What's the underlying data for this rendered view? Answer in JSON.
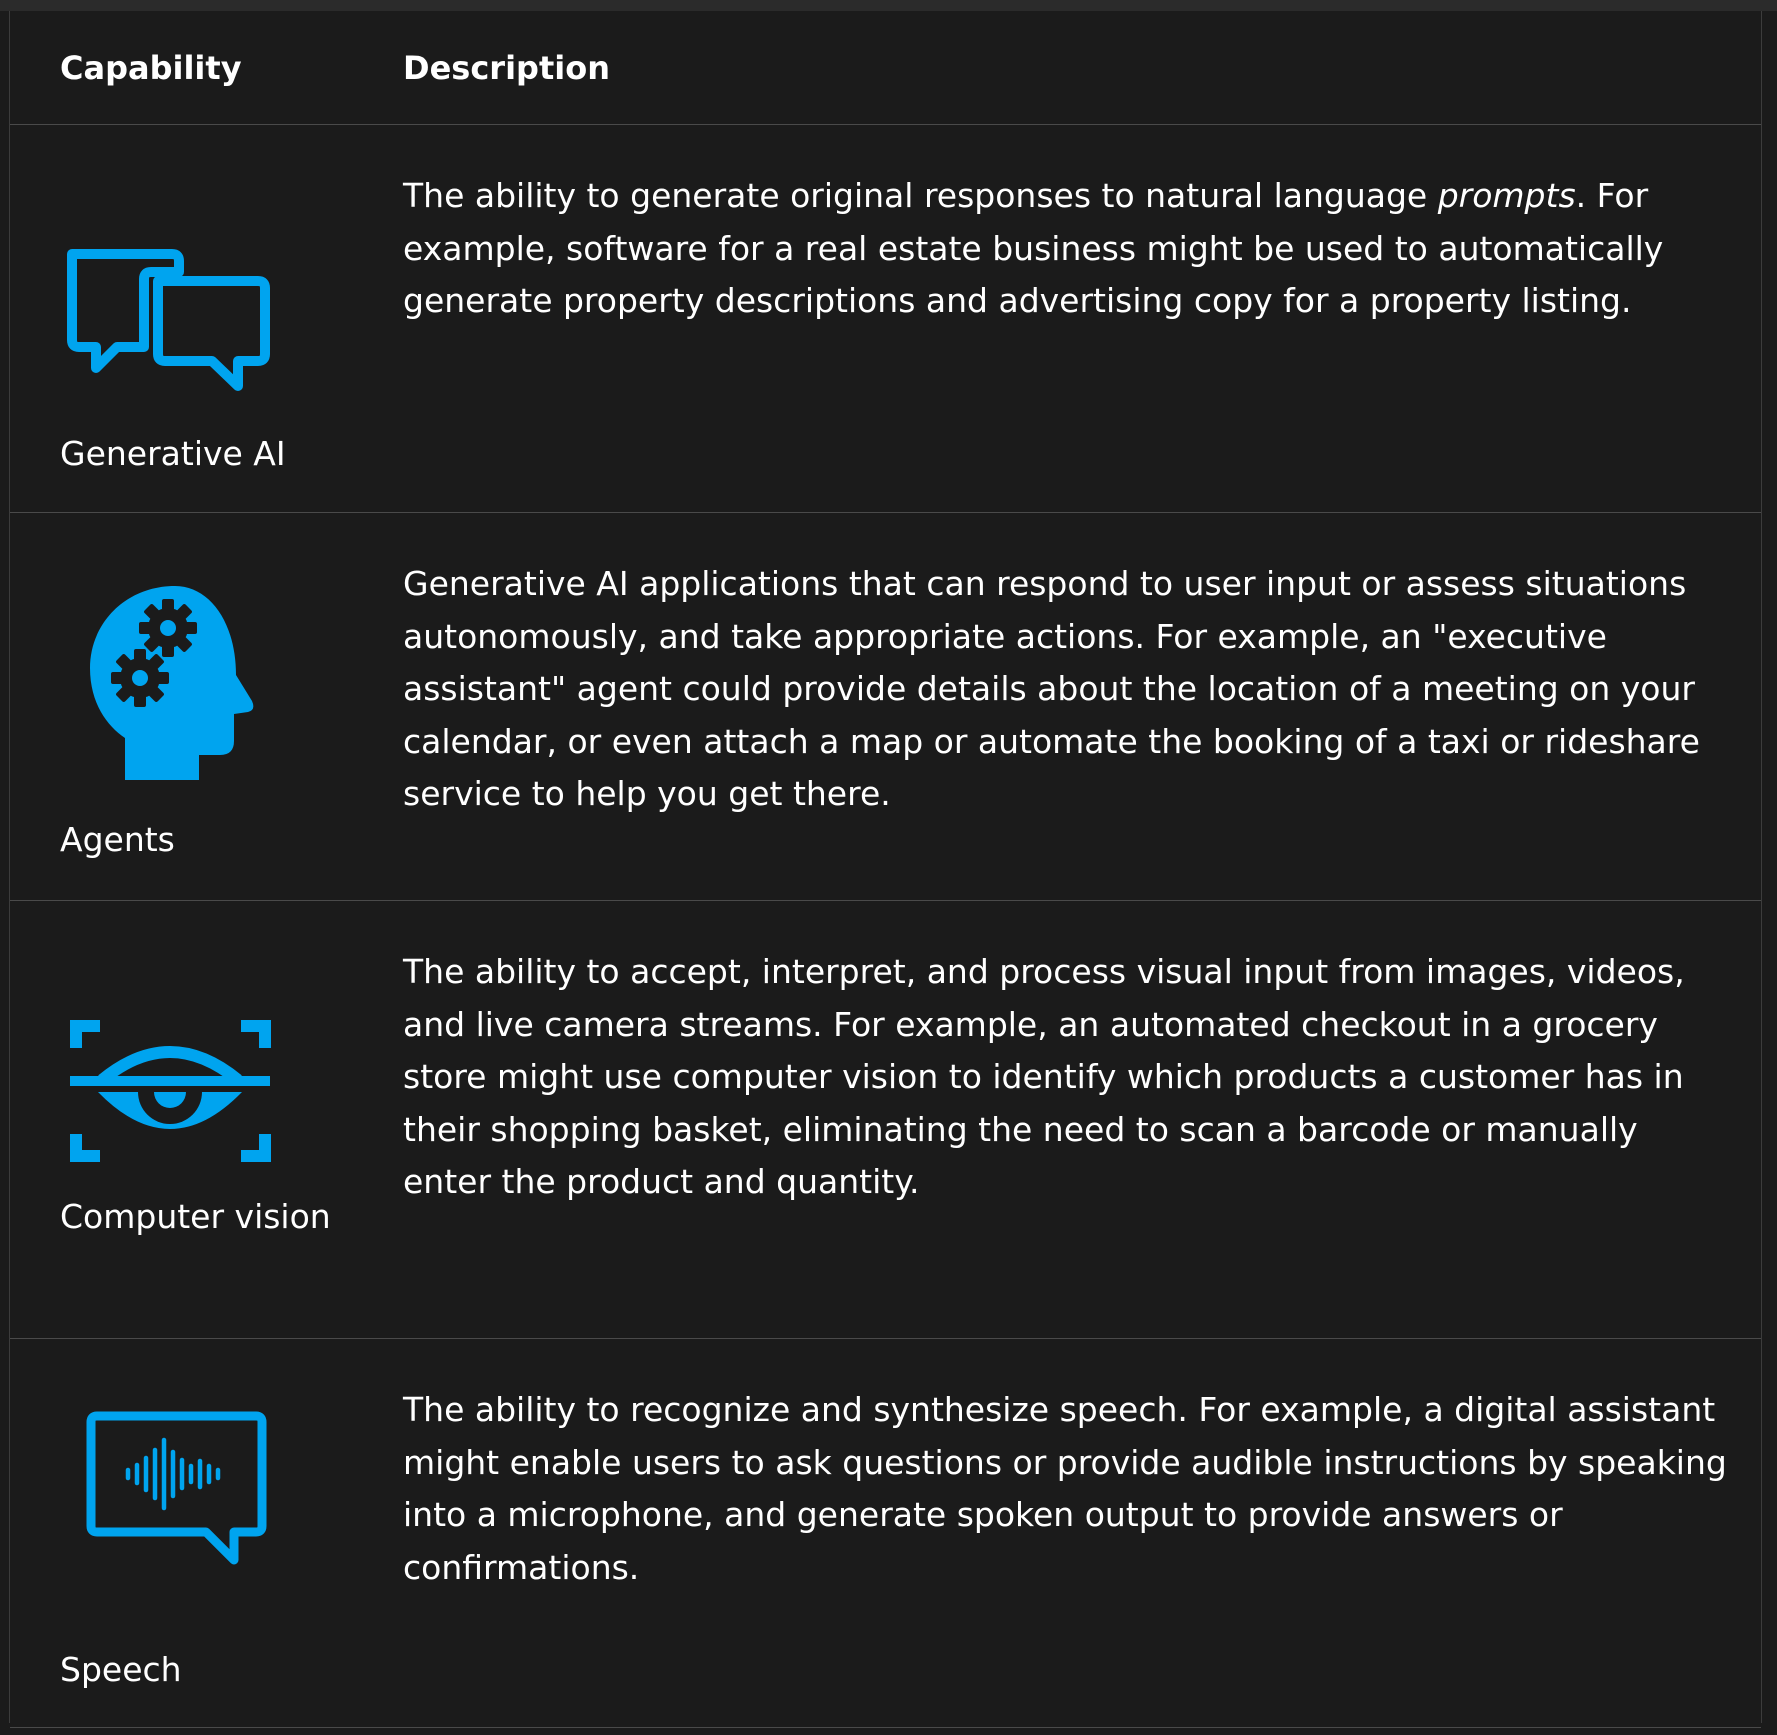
{
  "table": {
    "headers": {
      "capability": "Capability",
      "description": "Description"
    },
    "rows": [
      {
        "capability": "Generative AI",
        "icon": "chat-bubbles-icon",
        "description_before": "The ability to generate original responses to natural language ",
        "description_emphasis": "prompts",
        "description_after": ". For example, software for a real estate business might be used to automatically generate property descriptions and advertising copy for a property listing."
      },
      {
        "capability": "Agents",
        "icon": "head-gears-icon",
        "description": "Generative AI applications that can respond to user input or assess situations autonomously, and take appropriate actions. For example, an \"executive assistant\" agent could provide details about the location of a meeting on your calendar, or even attach a map or automate the booking of a taxi or rideshare service to help you get there."
      },
      {
        "capability": "Computer vision",
        "icon": "eye-scan-icon",
        "description": "The ability to accept, interpret, and process visual input from images, videos, and live camera streams. For example, an automated checkout in a grocery store might use computer vision to identify which products a customer has in their shopping basket, eliminating the need to scan a barcode or manually enter the product and quantity."
      },
      {
        "capability": "Speech",
        "icon": "speech-waveform-icon",
        "description": "The ability to recognize and synthesize speech. For example, a digital assistant might enable users to ask questions or provide audible instructions by speaking into a microphone, and generate spoken output to provide answers or confirmations."
      }
    ]
  },
  "colors": {
    "background": "#1b1b1b",
    "accent": "#00a4ef",
    "text": "#ffffff",
    "divider": "#4a4a4a"
  }
}
